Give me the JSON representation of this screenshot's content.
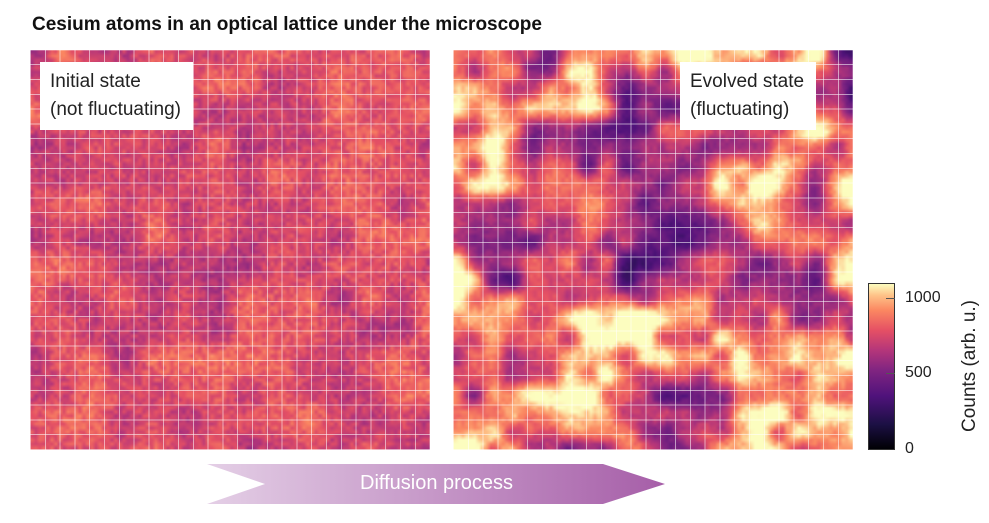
{
  "title": "Cesium atoms in an optical lattice under the microscope",
  "panels": [
    {
      "label_line1": "Initial state",
      "label_line2": "(not fluctuating)"
    },
    {
      "label_line1": "Evolved state",
      "label_line2": "(fluctuating)"
    }
  ],
  "colorbar": {
    "label": "Counts (arb. u.)",
    "ticks": [
      "1000",
      "500",
      "0"
    ],
    "colormap": "magma"
  },
  "arrow": {
    "label": "Diffusion process",
    "color_start": "#e4cfe6",
    "color_end": "#a65ea8"
  }
}
